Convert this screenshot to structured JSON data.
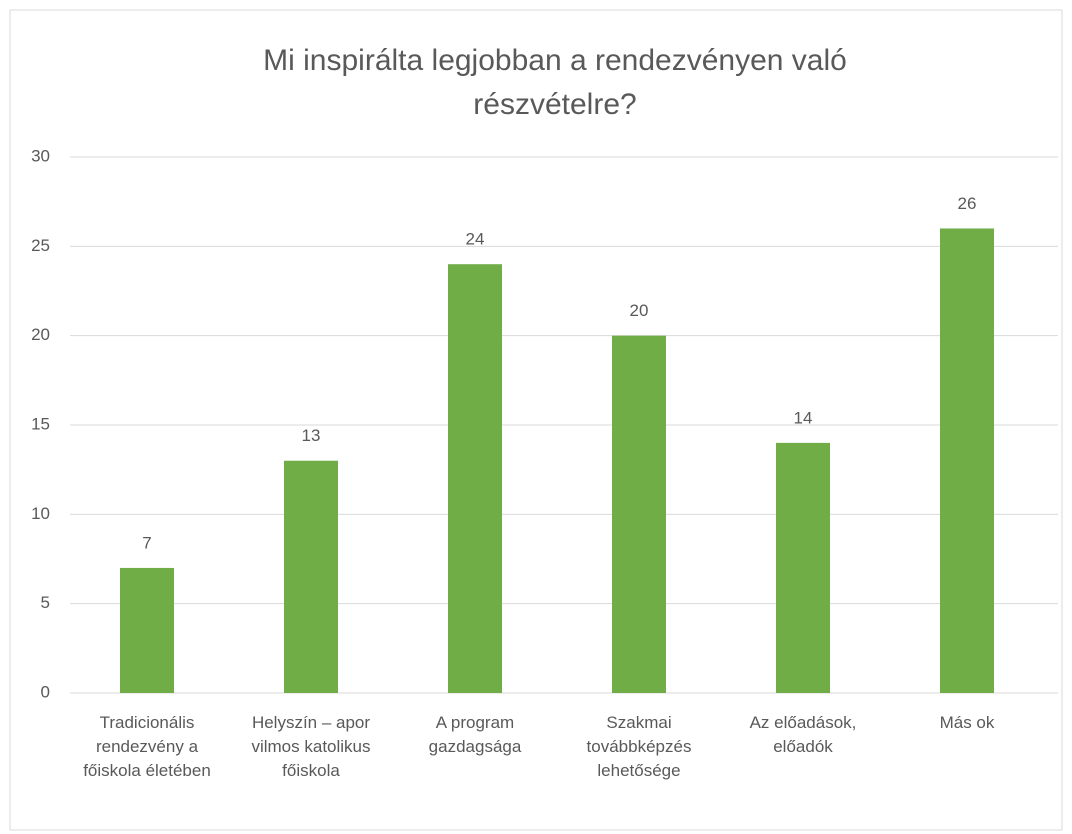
{
  "chart_data": {
    "type": "bar",
    "title": "Mi inspirálta legjobban a rendezvényen való részvételre?",
    "categories": [
      "Tradicionális rendezvény a főiskola életében",
      "Helyszín – apor vilmos katolikus főiskola",
      "A program gazdagsága",
      "Szakmai továbbképzés lehetősége",
      "Az előadások, előadók",
      "Más ok"
    ],
    "values": [
      7,
      13,
      24,
      20,
      14,
      26
    ],
    "color": "#70ad47",
    "ylim": [
      0,
      30
    ],
    "yticks": [
      0,
      5,
      10,
      15,
      20,
      25,
      30
    ],
    "grid": true,
    "data_labels": true
  }
}
